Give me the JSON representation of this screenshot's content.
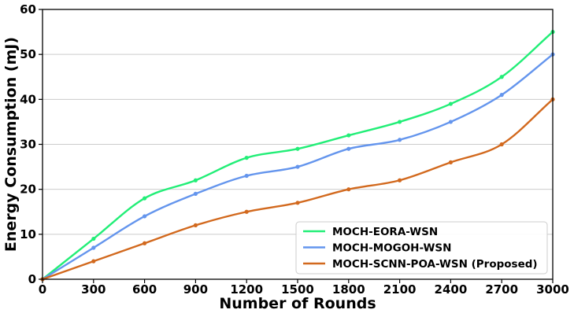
{
  "chart_data": {
    "type": "line",
    "title": "",
    "xlabel": "Number of Rounds",
    "ylabel": "Energy Consumption (mJ)",
    "xlim": [
      0,
      3000
    ],
    "ylim": [
      0,
      60
    ],
    "x_ticks": [
      0,
      300,
      600,
      900,
      1200,
      1500,
      1800,
      2100,
      2400,
      2700,
      3000
    ],
    "y_ticks": [
      0,
      10,
      20,
      30,
      40,
      50,
      60
    ],
    "grid": "horizontal",
    "legend_position": "bottom-right",
    "x": [
      0,
      300,
      600,
      900,
      1200,
      1500,
      1800,
      2100,
      2400,
      2700,
      3000
    ],
    "series": [
      {
        "name": "MOCH-EORA-WSN",
        "color": "#22ee77",
        "values": [
          0,
          9,
          18,
          22,
          27,
          29,
          32,
          35,
          39,
          45,
          55
        ]
      },
      {
        "name": "MOCH-MOGOH-WSN",
        "color": "#6495ed",
        "values": [
          0,
          7,
          14,
          19,
          23,
          25,
          29,
          31,
          35,
          41,
          50
        ]
      },
      {
        "name": "MOCH-SCNN-POA-WSN (Proposed)",
        "color": "#d2691e",
        "values": [
          0,
          4,
          8,
          12,
          15,
          17,
          20,
          22,
          26,
          30,
          40
        ]
      }
    ]
  }
}
